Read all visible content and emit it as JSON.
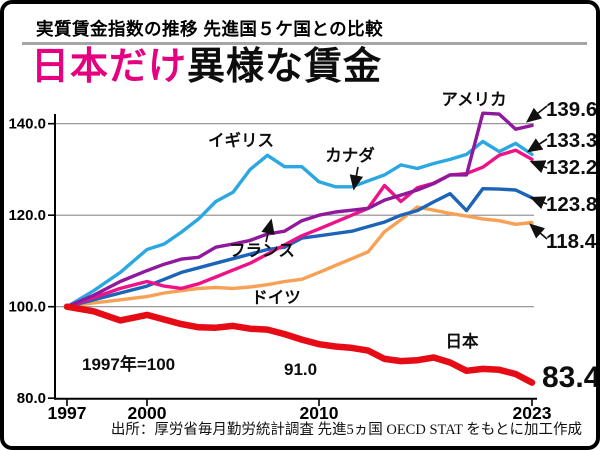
{
  "header": {
    "title": "実質賃金指数の推移 先進国５ケ国との比較"
  },
  "headline": {
    "highlight": "日本だけ",
    "rest": "異様な賃金"
  },
  "source": "出所：厚労省毎月勤労統計調査 先進5ヵ国 OECD STAT をもとに加工作成",
  "annotations": {
    "base_note": "1997年=100",
    "japan_mid_label": "91.0"
  },
  "colors": {
    "headline_pink": "#e4007f",
    "grid": "#8c8c8c",
    "axis": "#000000"
  },
  "chart_data": {
    "type": "line",
    "title": "実質賃金指数の推移 先進国５ケ国との比較",
    "xlabel": "",
    "ylabel": "実質賃金指数（1997年=100）",
    "x": [
      1997,
      1998,
      1999,
      2000,
      2001,
      2002,
      2003,
      2004,
      2005,
      2006,
      2007,
      2008,
      2009,
      2010,
      2011,
      2012,
      2013,
      2014,
      2015,
      2016,
      2017,
      2018,
      2019,
      2020,
      2021,
      2022,
      2023
    ],
    "x_tick_years": [
      1997,
      2000,
      2010,
      2023
    ],
    "x_tick_labels": [
      "1997",
      "2000",
      "2010",
      "2023"
    ],
    "y_ticks": [
      140.0,
      120.0,
      100.0,
      80.0
    ],
    "y_tick_labels": [
      "140.0",
      "120.0",
      "100.0",
      "80.0"
    ],
    "ylim": [
      80,
      145
    ],
    "grid": "horizontal",
    "legend_position": "inline-labels",
    "series": [
      {
        "name": "アメリカ",
        "end_label": "139.6",
        "color": "#8f189c",
        "values": [
          100,
          102.5,
          105.5,
          107.9,
          109.3,
          110.4,
          110.8,
          113,
          113.7,
          114.5,
          115.9,
          116.5,
          118.8,
          120,
          120.7,
          121.1,
          121.5,
          123.3,
          124.4,
          125.5,
          126.9,
          128.8,
          128.8,
          142.3,
          142.1,
          138.8,
          139.6
        ]
      },
      {
        "name": "イギリス",
        "end_label": "133.3",
        "color": "#2ba7e1",
        "values": [
          100,
          103.5,
          107.5,
          112.5,
          113.7,
          116.3,
          119.2,
          123,
          125,
          130,
          133.1,
          130.6,
          130.6,
          127.3,
          126.2,
          126.2,
          127.5,
          128.8,
          131,
          130.2,
          131.3,
          132.2,
          133.3,
          136.1,
          133.9,
          135.7,
          133.3
        ]
      },
      {
        "name": "カナダ",
        "end_label": "132.2",
        "color": "#ee1288",
        "values": [
          100,
          102,
          104,
          105.5,
          104.5,
          104,
          105,
          106.5,
          108,
          109.5,
          111.5,
          113.5,
          115.5,
          117,
          118.5,
          120,
          121.5,
          126.5,
          123,
          126,
          127,
          128.8,
          129.1,
          130.5,
          133.1,
          134.2,
          132.2
        ]
      },
      {
        "name": "フランス",
        "end_label": "123.8",
        "color": "#1c64b8",
        "values": [
          100,
          101.5,
          103,
          104.5,
          106,
          107.5,
          108.5,
          109.5,
          110.5,
          111.5,
          112.5,
          113,
          115,
          115.5,
          116,
          116.5,
          117.5,
          118.5,
          120,
          121,
          122.9,
          124.7,
          121,
          125.8,
          125.7,
          125.5,
          123.8
        ]
      },
      {
        "name": "ドイツ",
        "end_label": "118.4",
        "color": "#f7a155",
        "values": [
          100,
          100.8,
          101.5,
          102.2,
          103,
          103.5,
          104,
          104.2,
          104,
          104.3,
          104.8,
          105.5,
          106,
          107.5,
          109,
          110.5,
          112,
          116.4,
          119,
          121.8,
          121.1,
          120.4,
          119.8,
          119.2,
          118.8,
          118,
          118.4
        ]
      },
      {
        "name": "日本",
        "end_label": "83.4",
        "color": "#e50c16",
        "values": [
          100,
          99,
          97,
          98.2,
          97.2,
          96.2,
          95.5,
          95.4,
          95.8,
          95.2,
          95,
          94,
          92.8,
          91.8,
          91.3,
          91,
          90.4,
          88.6,
          88.1,
          88.3,
          88.9,
          87.8,
          86,
          86.4,
          86.2,
          85.3,
          83.4
        ]
      }
    ]
  }
}
